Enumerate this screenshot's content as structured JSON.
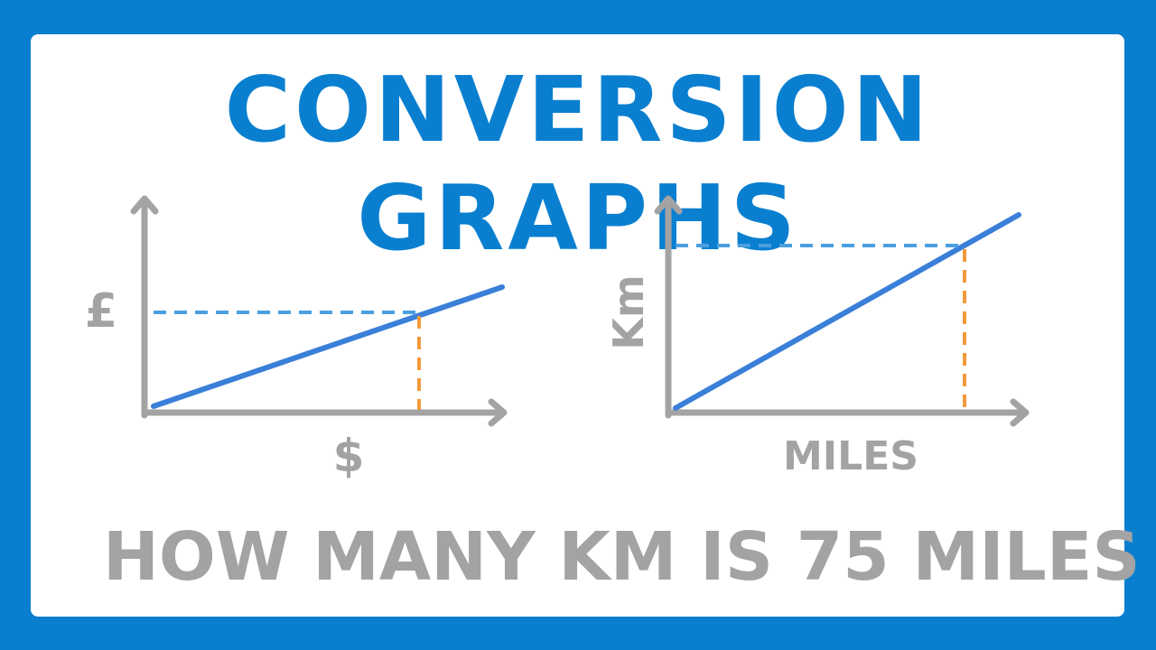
{
  "title": "CONVERSION GRAPHS",
  "colors": {
    "frame": "#0a7fd0",
    "title": "#0a7fd0",
    "axis": "#a3a3a3",
    "line": "#3a7fd8",
    "horizontal_guide": "#4a9fe0",
    "vertical_guide": "#f29a3c",
    "question_mark": "#0a7fd0"
  },
  "graphs": [
    {
      "id": "currency",
      "y_label": "£",
      "x_label": "$"
    },
    {
      "id": "distance",
      "y_label": "Km",
      "x_label": "MILES"
    }
  ],
  "question": {
    "text": "HOW MANY KM IS 75 MILES",
    "mark": "?"
  }
}
